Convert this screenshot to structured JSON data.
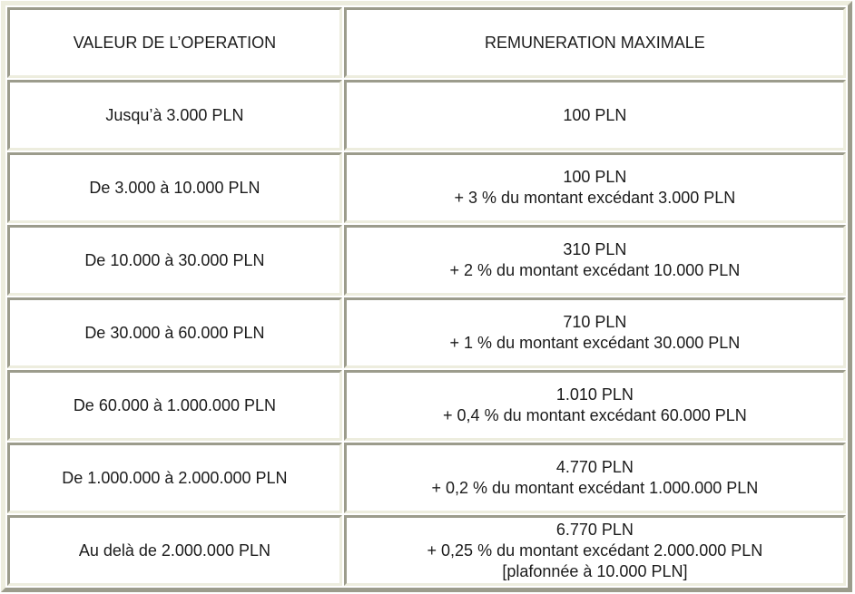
{
  "colors": {
    "border_light": "#EDEDDE",
    "border_dark": "#9C9C8C",
    "text": "#1B1B1B",
    "page_background": "#FFFFFF"
  },
  "table": {
    "columns": [
      {
        "label": "VALEUR DE L’OPERATION"
      },
      {
        "label": "REMUNERATION MAXIMALE"
      }
    ],
    "rows": [
      {
        "value": "Jusqu’à 3.000 PLN",
        "remuneration": [
          "100 PLN"
        ]
      },
      {
        "value": "De 3.000 à 10.000 PLN",
        "remuneration": [
          "100 PLN",
          "+ 3 % du montant excédant 3.000 PLN"
        ]
      },
      {
        "value": "De 10.000 à 30.000 PLN",
        "remuneration": [
          "310 PLN",
          "+ 2 % du montant excédant 10.000 PLN"
        ]
      },
      {
        "value": "De 30.000 à 60.000 PLN",
        "remuneration": [
          "710 PLN",
          "+ 1 % du montant excédant 30.000 PLN"
        ]
      },
      {
        "value": "De 60.000 à 1.000.000 PLN",
        "remuneration": [
          "1.010 PLN",
          "+ 0,4 % du montant excédant 60.000 PLN"
        ]
      },
      {
        "value": "De 1.000.000 à 2.000.000 PLN",
        "remuneration": [
          "4.770 PLN",
          "+ 0,2 % du montant excédant 1.000.000 PLN"
        ]
      },
      {
        "value": "Au delà de 2.000.000 PLN",
        "remuneration": [
          "6.770 PLN",
          "+ 0,25 % du montant excédant 2.000.000 PLN",
          "[plafonnée à 10.000 PLN]"
        ]
      }
    ]
  }
}
